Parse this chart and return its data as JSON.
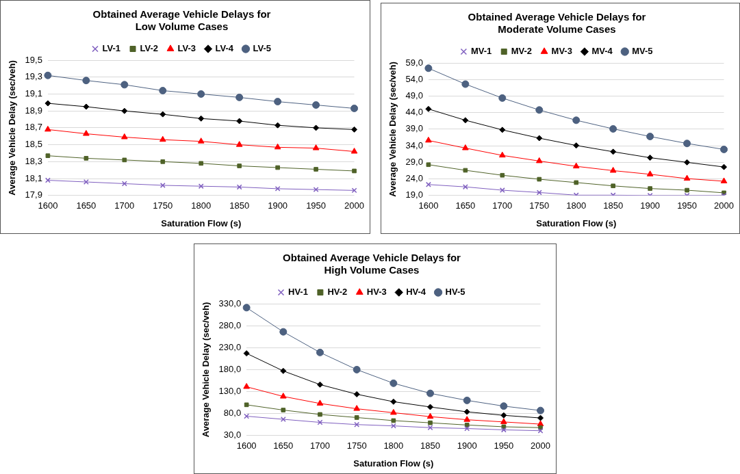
{
  "chart_data": [
    {
      "type": "line",
      "title": "Obtained Average Vehicle Delays for Low Volume Cases",
      "xlabel": "Saturation Flow (s)",
      "ylabel": "Average Vehicle Delay (sec/veh)",
      "categories": [
        "1600",
        "1650",
        "1700",
        "1750",
        "1800",
        "1850",
        "1900",
        "1950",
        "2000"
      ],
      "series": [
        {
          "name": "LV-1",
          "color": "#7f5fbf",
          "marker": "cross",
          "values": [
            18.08,
            18.06,
            18.04,
            18.02,
            18.01,
            18.0,
            17.98,
            17.97,
            17.96
          ]
        },
        {
          "name": "LV-2",
          "color": "#4f6228",
          "marker": "square",
          "values": [
            18.37,
            18.34,
            18.32,
            18.3,
            18.28,
            18.25,
            18.23,
            18.21,
            18.19
          ]
        },
        {
          "name": "LV-3",
          "color": "#ff0000",
          "marker": "triangle",
          "values": [
            18.68,
            18.63,
            18.59,
            18.56,
            18.54,
            18.5,
            18.47,
            18.46,
            18.42
          ]
        },
        {
          "name": "LV-4",
          "color": "#000000",
          "marker": "diamond",
          "values": [
            18.99,
            18.95,
            18.9,
            18.86,
            18.81,
            18.78,
            18.73,
            18.7,
            18.68
          ]
        },
        {
          "name": "LV-5",
          "color": "#4d6180",
          "marker": "circle",
          "values": [
            19.32,
            19.26,
            19.21,
            19.14,
            19.1,
            19.06,
            19.01,
            18.97,
            18.93
          ]
        }
      ],
      "ylim": [
        17.9,
        19.5
      ],
      "yticks": [
        {
          "value": 17.9,
          "label": "17,9"
        },
        {
          "value": 18.1,
          "label": "18,1"
        },
        {
          "value": 18.3,
          "label": "18,3"
        },
        {
          "value": 18.5,
          "label": "18,5"
        },
        {
          "value": 18.7,
          "label": "18,7"
        },
        {
          "value": 18.9,
          "label": "18,9"
        },
        {
          "value": 19.1,
          "label": "19,1"
        },
        {
          "value": 19.3,
          "label": "19,3"
        },
        {
          "value": 19.5,
          "label": "19,5"
        }
      ],
      "grid": "y",
      "legend": "top"
    },
    {
      "type": "line",
      "title": "Obtained Average Vehicle Delays for Moderate Volume Cases",
      "xlabel": "Saturation Flow (s)",
      "ylabel": "Average Vehicle Delay (sec/veh)",
      "categories": [
        "1600",
        "1650",
        "1700",
        "1750",
        "1800",
        "1850",
        "1900",
        "1950",
        "2000"
      ],
      "series": [
        {
          "name": "MV-1",
          "color": "#7f5fbf",
          "marker": "cross",
          "values": [
            22.3,
            21.6,
            20.6,
            19.9,
            19.1,
            19.1,
            19.0,
            19.0,
            19.0
          ]
        },
        {
          "name": "MV-2",
          "color": "#4f6228",
          "marker": "square",
          "values": [
            28.3,
            26.6,
            25.1,
            23.9,
            22.9,
            21.9,
            21.1,
            20.6,
            19.8
          ]
        },
        {
          "name": "MV-3",
          "color": "#ff0000",
          "marker": "triangle",
          "values": [
            35.6,
            33.3,
            31.1,
            29.4,
            27.8,
            26.5,
            25.4,
            24.1,
            23.3
          ]
        },
        {
          "name": "MV-4",
          "color": "#000000",
          "marker": "diamond",
          "values": [
            45.1,
            41.7,
            38.8,
            36.3,
            34.1,
            32.2,
            30.4,
            29.0,
            27.6
          ]
        },
        {
          "name": "MV-5",
          "color": "#4d6180",
          "marker": "circle",
          "values": [
            57.4,
            52.6,
            48.4,
            44.8,
            41.7,
            39.1,
            36.8,
            34.7,
            32.9
          ]
        }
      ],
      "ylim": [
        19,
        59
      ],
      "yticks": [
        {
          "value": 19,
          "label": "19,0"
        },
        {
          "value": 24,
          "label": "24,0"
        },
        {
          "value": 29,
          "label": "29,0"
        },
        {
          "value": 34,
          "label": "34,0"
        },
        {
          "value": 39,
          "label": "39,0"
        },
        {
          "value": 44,
          "label": "44,0"
        },
        {
          "value": 49,
          "label": "49,0"
        },
        {
          "value": 54,
          "label": "54,0"
        },
        {
          "value": 59,
          "label": "59,0"
        }
      ],
      "grid": "y",
      "legend": "top"
    },
    {
      "type": "line",
      "title": "Obtained Average Vehicle Delays for High Volume Cases",
      "xlabel": "Saturation Flow (s)",
      "ylabel": "Average Vehicle Delay (sec/veh)",
      "categories": [
        "1600",
        "1650",
        "1700",
        "1750",
        "1800",
        "1850",
        "1900",
        "1950",
        "2000"
      ],
      "series": [
        {
          "name": "HV-1",
          "color": "#7f5fbf",
          "marker": "cross",
          "values": [
            74,
            67,
            60,
            55,
            52,
            48,
            46,
            43,
            41
          ]
        },
        {
          "name": "HV-2",
          "color": "#4f6228",
          "marker": "square",
          "values": [
            100,
            88,
            78,
            71,
            64,
            59,
            54,
            50,
            48
          ]
        },
        {
          "name": "HV-3",
          "color": "#ff0000",
          "marker": "triangle",
          "values": [
            141,
            119,
            103,
            91,
            82,
            73,
            66,
            61,
            56
          ]
        },
        {
          "name": "HV-4",
          "color": "#000000",
          "marker": "diamond",
          "values": [
            217,
            177,
            146,
            124,
            107,
            95,
            84,
            76,
            70
          ]
        },
        {
          "name": "HV-5",
          "color": "#4d6180",
          "marker": "circle",
          "values": [
            321,
            266,
            219,
            180,
            149,
            126,
            110,
            97,
            87
          ]
        }
      ],
      "ylim": [
        30,
        330
      ],
      "yticks": [
        {
          "value": 30,
          "label": "30,0"
        },
        {
          "value": 80,
          "label": "80,0"
        },
        {
          "value": 130,
          "label": "130,0"
        },
        {
          "value": 180,
          "label": "180,0"
        },
        {
          "value": 230,
          "label": "230,0"
        },
        {
          "value": 280,
          "label": "280,0"
        },
        {
          "value": 330,
          "label": "330,0"
        }
      ],
      "grid": "y",
      "legend": "top"
    }
  ]
}
